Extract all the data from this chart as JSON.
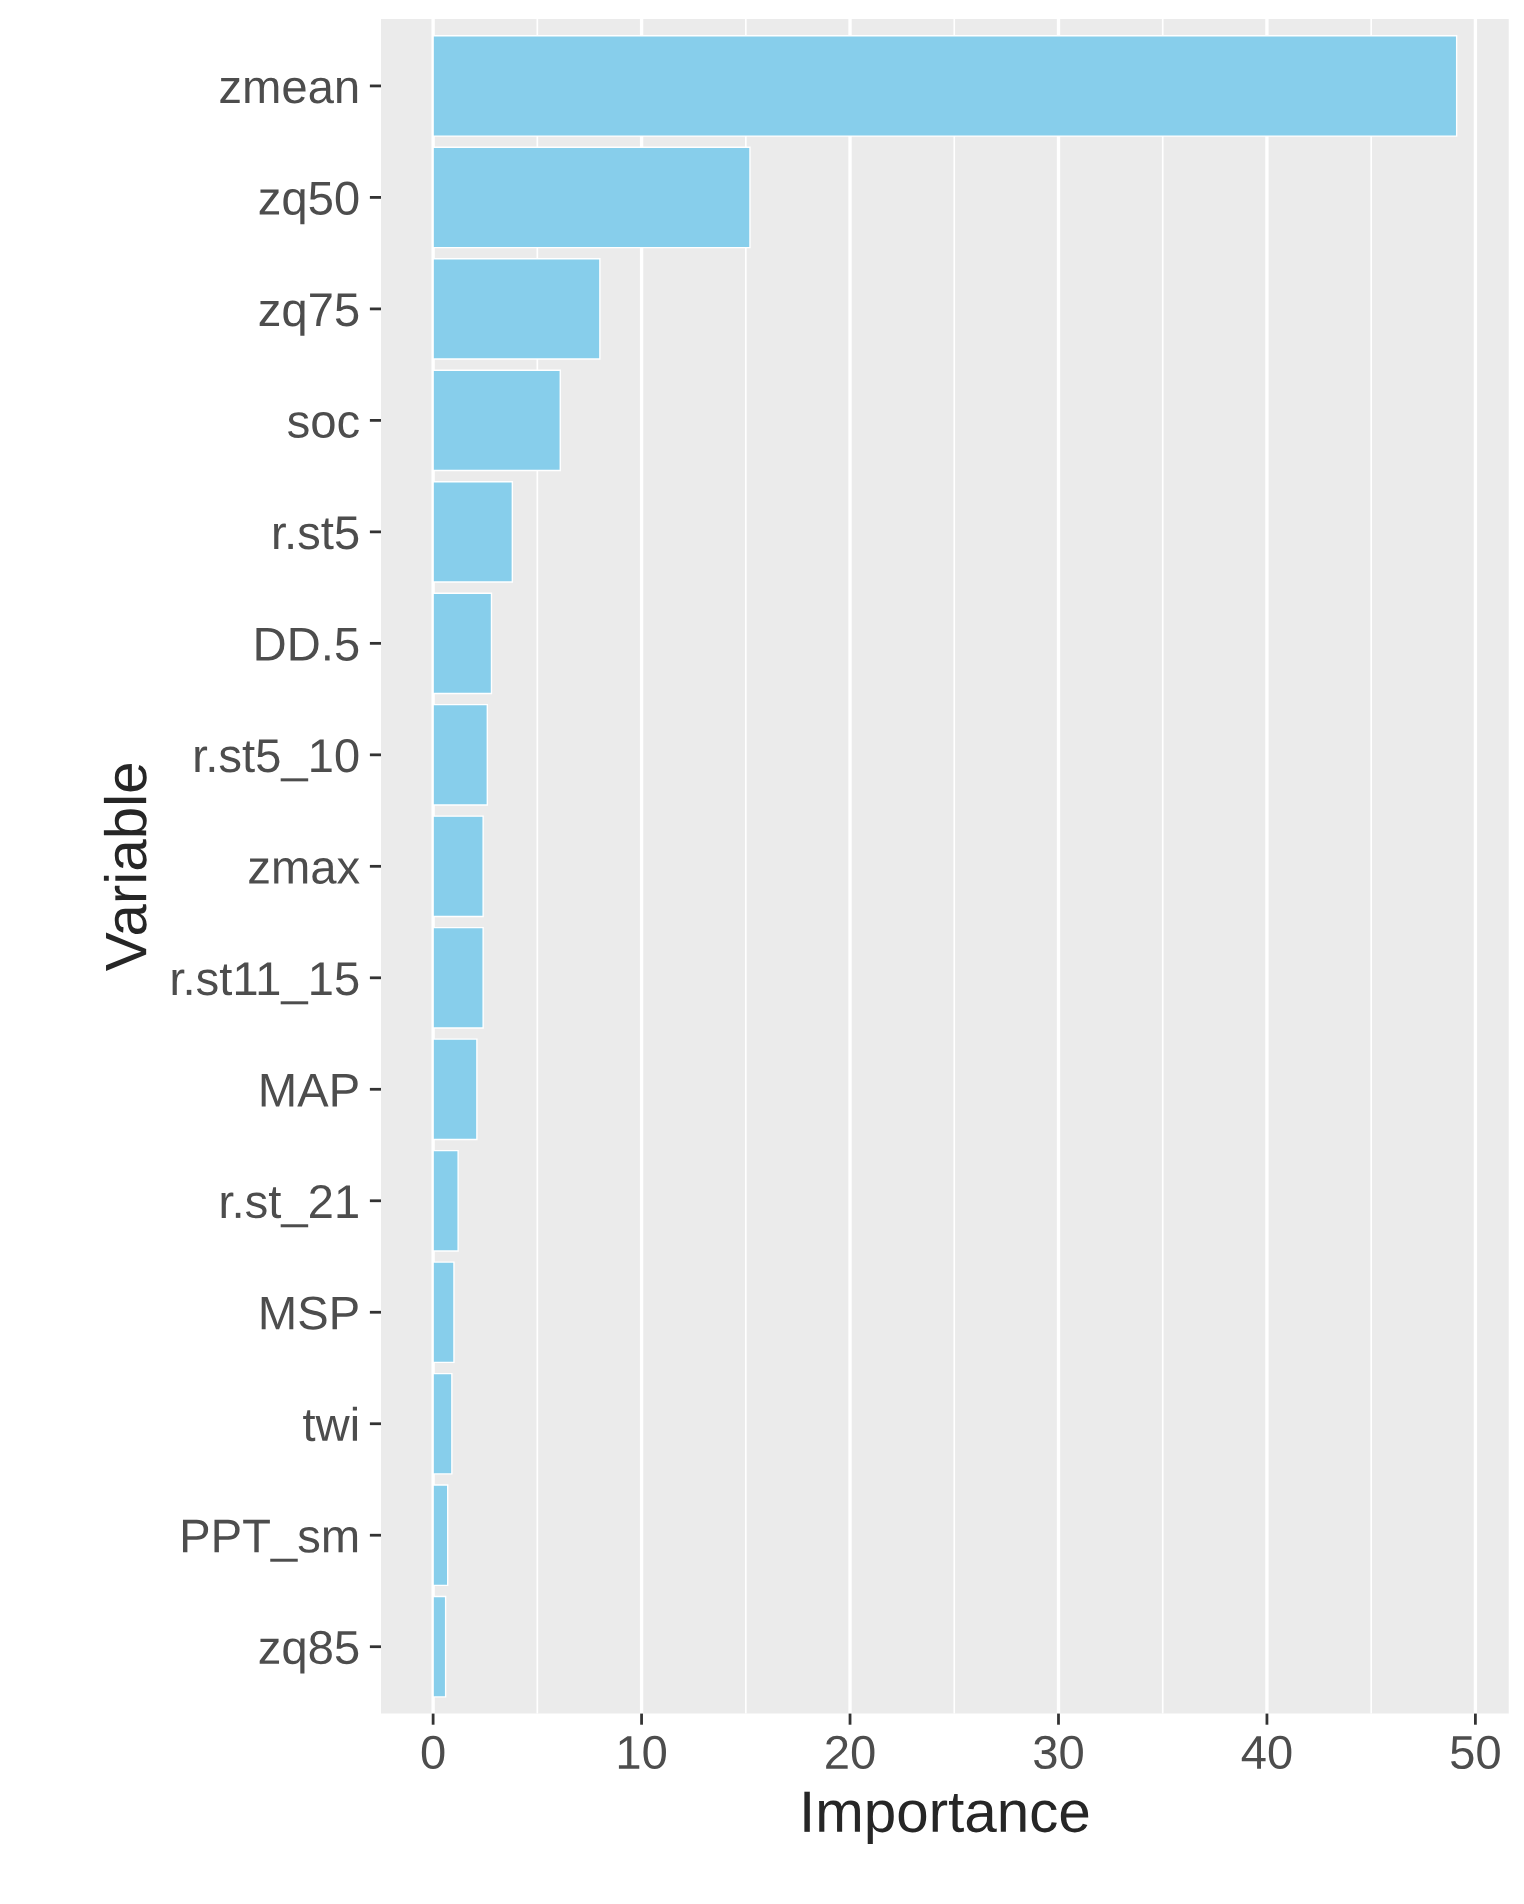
{
  "chart_data": {
    "type": "bar",
    "orientation": "horizontal",
    "xlabel": "Importance",
    "ylabel": "Variable",
    "categories": [
      "zmean",
      "zq50",
      "zq75",
      "soc",
      "r.st5",
      "DD.5",
      "r.st5_10",
      "zmax",
      "r.st11_15",
      "MAP",
      "r.st_21",
      "MSP",
      "twi",
      "PPT_sm",
      "zq85"
    ],
    "values": [
      49.1,
      15.2,
      8.0,
      6.1,
      3.8,
      2.8,
      2.6,
      2.4,
      2.4,
      2.1,
      1.2,
      1.0,
      0.9,
      0.7,
      0.6
    ],
    "color": "#87ceeb",
    "xlim": [
      -2.5,
      51.6
    ],
    "xticks": [
      0,
      10,
      20,
      30,
      40,
      50
    ],
    "grid": "x"
  }
}
